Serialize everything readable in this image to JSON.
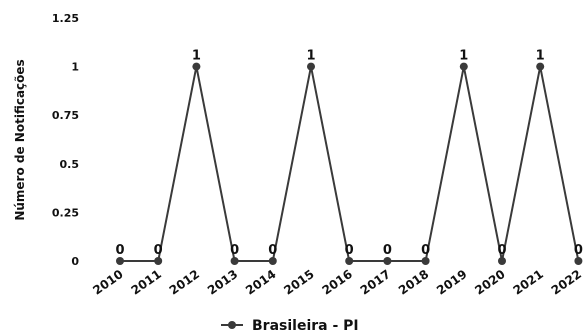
{
  "chart_data": {
    "type": "line",
    "ylabel": "Número de Notificações",
    "xlabel": "",
    "ylim": [
      0,
      1.25
    ],
    "yticks": [
      "0",
      "0.25",
      "0.5",
      "0.75",
      "1",
      "1.25"
    ],
    "grid": false,
    "legend_position": "bottom",
    "categories": [
      "2010",
      "2011",
      "2012",
      "2013",
      "2014",
      "2015",
      "2016",
      "2017",
      "2018",
      "2019",
      "2020",
      "2021",
      "2022"
    ],
    "series": [
      {
        "name": "Brasileira - PI",
        "color": "#3a3a3a",
        "values": [
          0,
          0,
          1,
          0,
          0,
          1,
          0,
          0,
          0,
          1,
          0,
          1,
          0
        ],
        "labels": [
          "0",
          "0",
          "1",
          "0",
          "0",
          "1",
          "0",
          "0",
          "0",
          "1",
          "0",
          "1",
          "0"
        ]
      }
    ]
  }
}
